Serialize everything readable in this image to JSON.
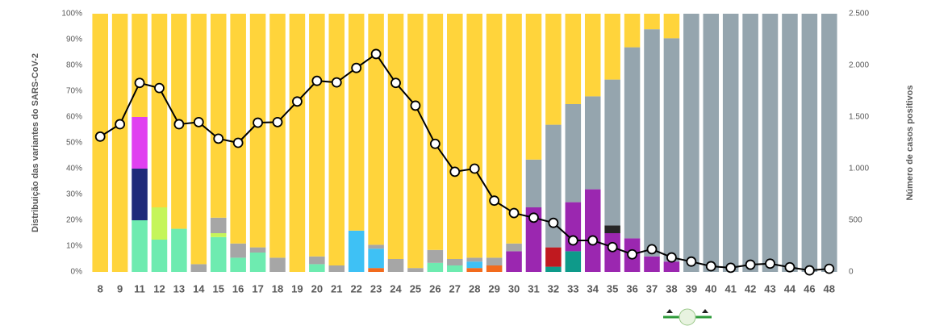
{
  "chart_data": {
    "type": "bar",
    "stacked": true,
    "ylabel": "Distribuição das variantes do SARS-CoV-2",
    "y2label": "Número de casos positivos",
    "categories": [
      "8",
      "9",
      "11",
      "12",
      "13",
      "14",
      "15",
      "16",
      "17",
      "18",
      "19",
      "20",
      "21",
      "22",
      "23",
      "24",
      "25",
      "26",
      "27",
      "28",
      "29",
      "30",
      "31",
      "32",
      "33",
      "34",
      "35",
      "36",
      "37",
      "38",
      "39",
      "40",
      "41",
      "42",
      "43",
      "44",
      "46",
      "48"
    ],
    "ylim": [
      0,
      100
    ],
    "yticks": [
      {
        "value": 0,
        "label": "0%"
      },
      {
        "value": 10,
        "label": "10%"
      },
      {
        "value": 20,
        "label": "20%"
      },
      {
        "value": 30,
        "label": "30%"
      },
      {
        "value": 40,
        "label": "40%"
      },
      {
        "value": 50,
        "label": "50%"
      },
      {
        "value": 60,
        "label": "60%"
      },
      {
        "value": 70,
        "label": "70%"
      },
      {
        "value": 80,
        "label": "80%"
      },
      {
        "value": 90,
        "label": "90%"
      },
      {
        "value": 100,
        "label": "100%"
      }
    ],
    "y2lim": [
      0,
      2500
    ],
    "y2ticks": [
      0,
      500,
      {
        "value": 1000,
        "label": "1.000"
      },
      {
        "value": 1500,
        "label": "1.500"
      },
      {
        "value": 2000,
        "label": "2.000"
      },
      {
        "value": 2500,
        "label": "2.500"
      }
    ],
    "series": [
      {
        "color": "#6EEBB0",
        "values": [
          0,
          0,
          20,
          12.5,
          16.7,
          0,
          13.5,
          5.5,
          7.5,
          0,
          0,
          3,
          0,
          0,
          0,
          0,
          0,
          3.5,
          2.5,
          0,
          0,
          0,
          0,
          0,
          0,
          0,
          0,
          0,
          0,
          0,
          0,
          0,
          0,
          0,
          0,
          0,
          0,
          0
        ]
      },
      {
        "color": "#1F2A7A",
        "values": [
          0,
          0,
          20,
          0,
          0,
          0,
          0,
          0,
          0,
          0,
          0,
          0,
          0,
          0,
          0,
          0,
          0,
          0,
          0,
          0,
          0,
          0,
          0,
          0,
          0,
          0,
          0,
          0,
          0,
          0,
          0,
          0,
          0,
          0,
          0,
          0,
          0,
          0
        ]
      },
      {
        "color": "#E040F0",
        "values": [
          0,
          0,
          20,
          0,
          0,
          0,
          0,
          0,
          0,
          0,
          0,
          0,
          0,
          0,
          0,
          0,
          0,
          0,
          0,
          0,
          0,
          0,
          0,
          0,
          0,
          0,
          0,
          0,
          0,
          0,
          0,
          0,
          0,
          0,
          0,
          0,
          0,
          0
        ]
      },
      {
        "color": "#C5F55A",
        "values": [
          0,
          0,
          0,
          12.5,
          0,
          0,
          1.5,
          0,
          0,
          0,
          0,
          0,
          0,
          0,
          0,
          0,
          0,
          0,
          0,
          0,
          0,
          0,
          0,
          0,
          0,
          0,
          0,
          0,
          0,
          0,
          0,
          0,
          0,
          0,
          0,
          0,
          0,
          0
        ]
      },
      {
        "color": "#F26B1D",
        "values": [
          0,
          0,
          0,
          0,
          0,
          0,
          0,
          0,
          0,
          0,
          0,
          0,
          0,
          0,
          1.5,
          0,
          0,
          0,
          0,
          1.5,
          2.5,
          0,
          0,
          0,
          0,
          0,
          0,
          0,
          0,
          0,
          0,
          0,
          0,
          0,
          0,
          0,
          0,
          0
        ]
      },
      {
        "color": "#3EC1F5",
        "values": [
          0,
          0,
          0,
          0,
          0,
          0,
          0,
          0,
          0,
          0,
          0,
          0,
          0,
          16,
          7.5,
          0,
          0,
          0,
          0,
          2.5,
          0,
          0,
          0,
          0,
          0,
          0,
          0,
          0,
          0,
          0,
          0,
          0,
          0,
          0,
          0,
          0,
          0,
          0
        ]
      },
      {
        "color": "#0E9A8A",
        "values": [
          0,
          0,
          0,
          0,
          0,
          0,
          0,
          0,
          0,
          0,
          0,
          0,
          0,
          0,
          0,
          0,
          0,
          0,
          0,
          0,
          0,
          0,
          0,
          2,
          8,
          0,
          0,
          0,
          0,
          0,
          0,
          0,
          0,
          0,
          0,
          0,
          0,
          0
        ]
      },
      {
        "color": "#9B27B0",
        "values": [
          0,
          0,
          0,
          0,
          0,
          0,
          0,
          0,
          0,
          0,
          0,
          0,
          0,
          0,
          0,
          0,
          0,
          0,
          0,
          0,
          0,
          8,
          25,
          0,
          19,
          32,
          15,
          13,
          6,
          4,
          0,
          0,
          0,
          0,
          0,
          0,
          0,
          0
        ]
      },
      {
        "color": "#C0191F",
        "values": [
          0,
          0,
          0,
          0,
          0,
          0,
          0,
          0,
          0,
          0,
          0,
          0,
          0,
          0,
          0,
          0,
          0,
          0,
          0,
          0,
          0,
          0,
          0,
          7.5,
          0,
          0,
          0,
          0,
          0,
          0,
          0,
          0,
          0,
          0,
          0,
          0,
          0,
          0
        ]
      },
      {
        "color": "#262626",
        "values": [
          0,
          0,
          0,
          0,
          0,
          0,
          0,
          0,
          0,
          0,
          0,
          0,
          0,
          0,
          0,
          0,
          0,
          0,
          0,
          0,
          0,
          0,
          0,
          0,
          0,
          0,
          3,
          0,
          0,
          0,
          0,
          0,
          0,
          0,
          0,
          0,
          0,
          0
        ]
      },
      {
        "color": "#A6A6A6",
        "values": [
          0,
          0,
          0,
          0,
          0,
          3,
          6,
          5.5,
          2,
          5.5,
          0,
          3,
          2.5,
          0,
          1.5,
          5,
          1.5,
          5,
          2.5,
          1.5,
          3,
          3,
          0,
          0,
          0,
          0,
          0,
          0,
          0,
          0,
          0,
          0,
          0,
          0,
          0,
          0,
          0,
          0
        ]
      },
      {
        "color": "#95A5AE",
        "values": [
          0,
          0,
          0,
          0,
          0,
          0,
          0,
          0,
          0,
          0,
          0,
          0,
          0,
          0,
          0,
          0,
          0,
          0,
          0,
          0,
          0,
          0,
          18.5,
          47.5,
          38,
          36,
          56.5,
          74,
          88,
          86.5,
          100,
          100,
          100,
          100,
          100,
          100,
          100,
          100
        ]
      },
      {
        "color": "#FFD43B",
        "values": [
          100,
          100,
          40,
          75,
          83.3,
          97,
          79,
          89,
          90.5,
          94.5,
          100,
          94,
          97.5,
          84,
          89.5,
          95,
          98.5,
          91.5,
          95,
          94.5,
          94.5,
          89,
          56.5,
          43,
          35,
          32,
          25.5,
          13,
          6,
          9.5,
          0,
          0,
          0,
          0,
          0,
          0,
          0,
          0
        ]
      },
      {
        "type": "line",
        "axis": "y2",
        "color": "#000000",
        "values": [
          1310,
          1430,
          1830,
          1780,
          1430,
          1450,
          1290,
          1250,
          1445,
          1450,
          1650,
          1850,
          1835,
          1975,
          2110,
          1830,
          1610,
          1240,
          970,
          1000,
          690,
          570,
          525,
          475,
          305,
          305,
          240,
          170,
          220,
          140,
          100,
          55,
          40,
          70,
          80,
          45,
          15,
          30
        ]
      }
    ]
  }
}
